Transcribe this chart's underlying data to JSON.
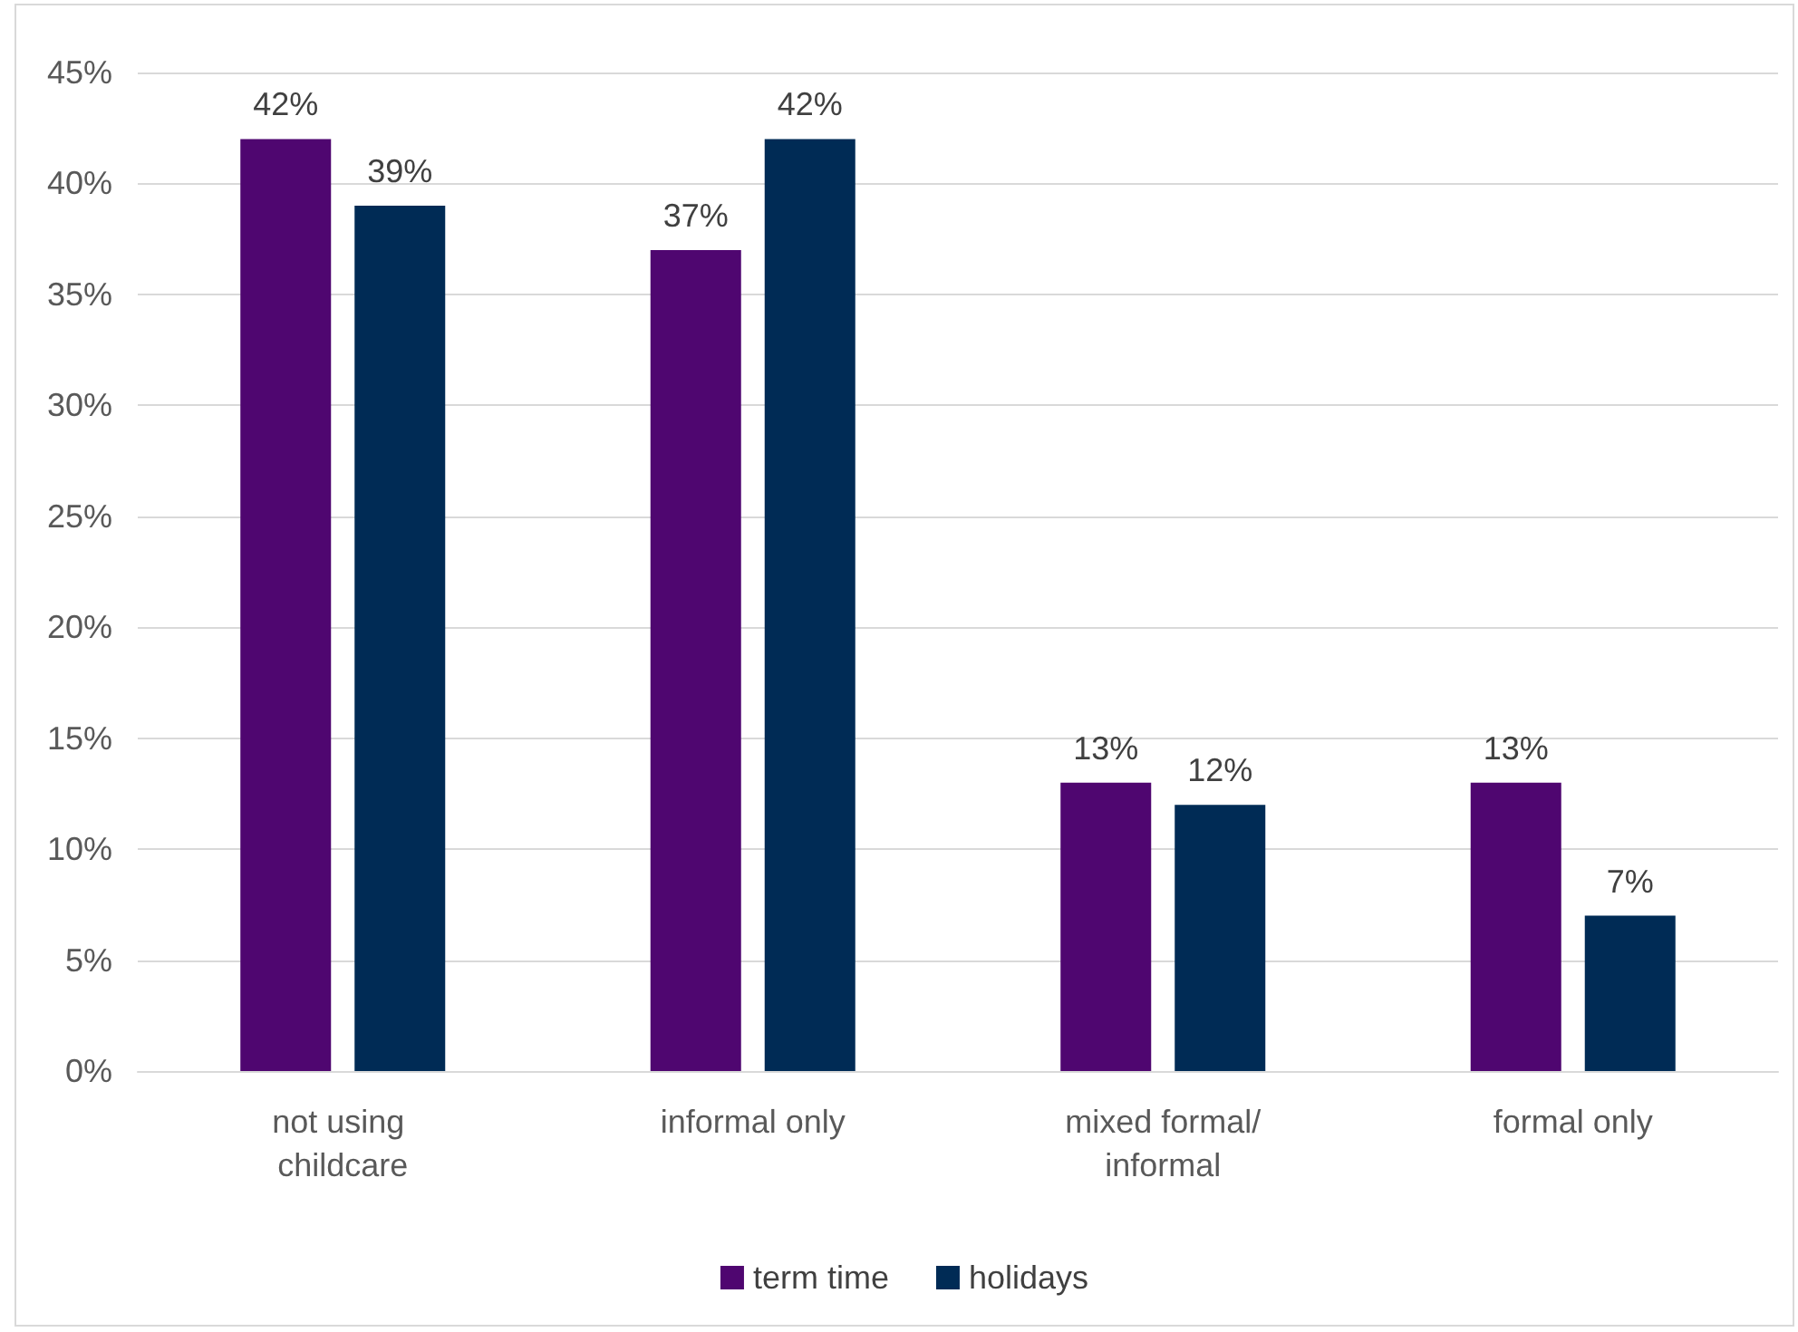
{
  "chart_data": {
    "type": "bar",
    "categories": [
      "not using childcare",
      "informal only",
      "mixed formal/informal",
      "formal only"
    ],
    "series": [
      {
        "name": "term time",
        "color": "#4f0670",
        "values": [
          42,
          37,
          13,
          13
        ],
        "value_labels": [
          "42%",
          "37%",
          "13%",
          "13%"
        ]
      },
      {
        "name": "holidays",
        "color": "#002b55",
        "values": [
          39,
          42,
          12,
          7
        ],
        "value_labels": [
          "39%",
          "42%",
          "12%",
          "7%"
        ]
      }
    ],
    "ylim": [
      0,
      45
    ],
    "yticks": [
      {
        "value": 0,
        "label": "0%"
      },
      {
        "value": 5,
        "label": "5%"
      },
      {
        "value": 10,
        "label": "10%"
      },
      {
        "value": 15,
        "label": "15%"
      },
      {
        "value": 20,
        "label": "20%"
      },
      {
        "value": 25,
        "label": "25%"
      },
      {
        "value": 30,
        "label": "30%"
      },
      {
        "value": 35,
        "label": "35%"
      },
      {
        "value": 40,
        "label": "40%"
      },
      {
        "value": 45,
        "label": "45%"
      }
    ],
    "grid": "y",
    "legend": "bottom"
  }
}
